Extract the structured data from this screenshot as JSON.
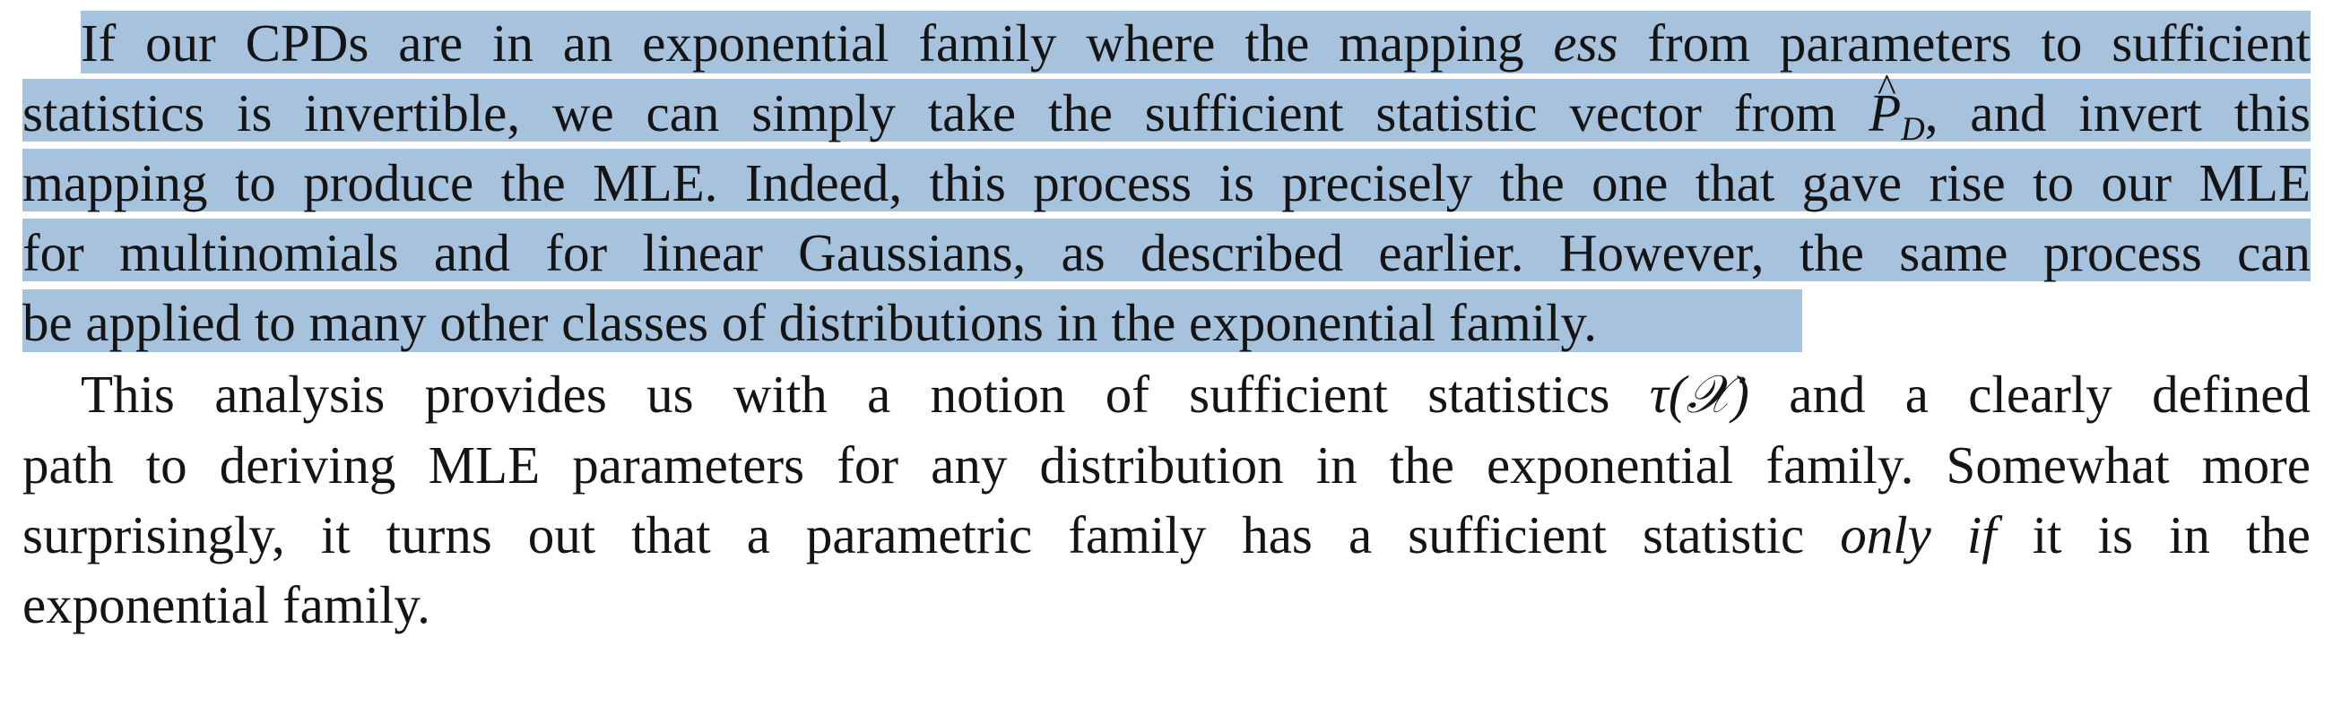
{
  "paragraph1": {
    "line1": {
      "before": "If our CPDs are in an exponential family where the mapping ",
      "ess": "ess",
      "after": " from parameters to sufficient"
    },
    "line2": {
      "before": "statistics is invertible, we can simply take the sufficient statistic vector from ",
      "p": "P",
      "p_sub": "D",
      "after": ", and invert this"
    },
    "line3": "mapping to produce the MLE. Indeed, this process is precisely the one that gave rise to our MLE",
    "line4": "for multinomials and for linear Gaussians, as described earlier. However, the same process can",
    "line5": "be applied to many other classes of distributions in the exponential family."
  },
  "paragraph2": {
    "line1": {
      "before": "This analysis provides us with a notion of sufficient statistics ",
      "math": "τ(𝒳)",
      "after": " and a clearly defined"
    },
    "line2": "path to deriving MLE parameters for any distribution in the exponential family. Somewhat more",
    "line3": {
      "before": "surprisingly, it turns out that a parametric family has a sufficient statistic ",
      "emph": "only if",
      "after": " it is in the"
    },
    "line4": "exponential family."
  },
  "colors": {
    "highlight": "#a7c2dc",
    "text": "#141414",
    "background": "#ffffff"
  }
}
